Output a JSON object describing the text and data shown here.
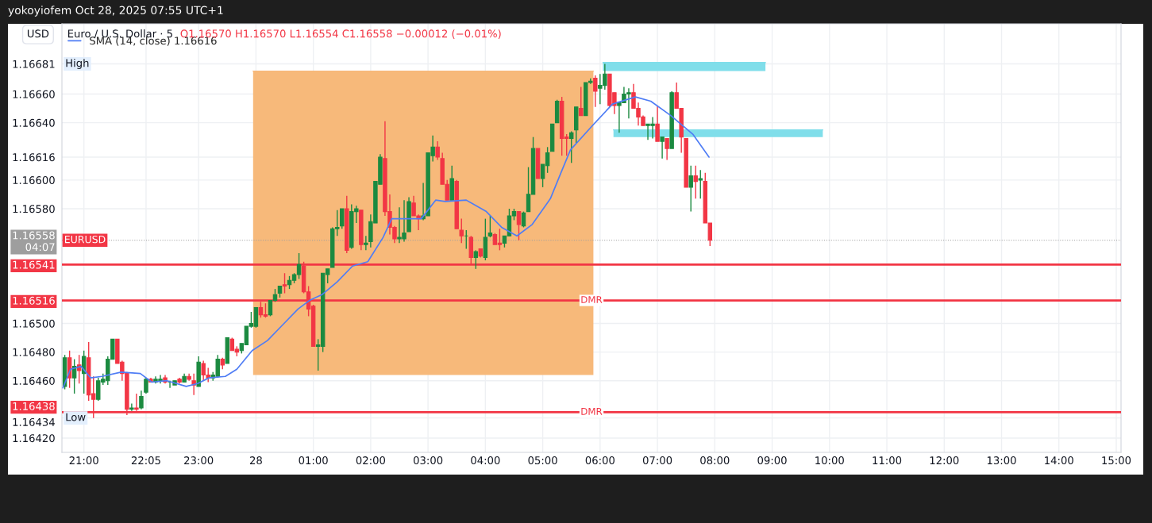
{
  "chart_data": {
    "type": "candlestick",
    "title": "Euro / U.S. Dollar · 5",
    "subtitle": "O1.16570 H1.16570 L1.16554 C1.16558 −0.00012 (−0.01%)",
    "ylabel": "USD",
    "xlim": [
      "2025-10-27T20:37",
      "2025-10-28T15:05"
    ],
    "ylim": [
      1.1641,
      1.16709
    ],
    "xticks": [
      {
        "value": "2025-10-27T21:00",
        "label": "21:00"
      },
      {
        "value": "2025-10-27T22:05",
        "label": "22:05"
      },
      {
        "value": "2025-10-27T23:00",
        "label": "23:00"
      },
      {
        "value": "2025-10-28",
        "label": "28"
      },
      {
        "value": "2025-10-28T01:00",
        "label": "01:00"
      },
      {
        "value": "2025-10-28T02:00",
        "label": "02:00"
      },
      {
        "value": "2025-10-28T03:00",
        "label": "03:00"
      },
      {
        "value": "2025-10-28T04:00",
        "label": "04:00"
      },
      {
        "value": "2025-10-28T05:00",
        "label": "05:00"
      },
      {
        "value": "2025-10-28T06:00",
        "label": "06:00"
      },
      {
        "value": "2025-10-28T07:00",
        "label": "07:00"
      },
      {
        "value": "2025-10-28T08:00",
        "label": "08:00"
      },
      {
        "value": "2025-10-28T09:00",
        "label": "09:00"
      },
      {
        "value": "2025-10-28T10:00",
        "label": "10:00"
      },
      {
        "value": "2025-10-28T11:00",
        "label": "11:00"
      },
      {
        "value": "2025-10-28T12:00",
        "label": "12:00"
      },
      {
        "value": "2025-10-28T13:00",
        "label": "13:00"
      },
      {
        "value": "2025-10-28T14:00",
        "label": "14:00"
      },
      {
        "value": "2025-10-28T15:00",
        "label": "15:00"
      }
    ],
    "yticks": [
      {
        "value": 1.1642,
        "label": "1.16420"
      },
      {
        "value": 1.16434,
        "label": "1.16434"
      },
      {
        "value": 1.16438,
        "label": "1.16438"
      },
      {
        "value": 1.1646,
        "label": "1.16460"
      },
      {
        "value": 1.1648,
        "label": "1.16480"
      },
      {
        "value": 1.165,
        "label": "1.16500"
      },
      {
        "value": 1.16516,
        "label": "1.16516"
      },
      {
        "value": 1.16541,
        "label": "1.16541"
      },
      {
        "value": 1.16558,
        "label": "1.16558\n04:07"
      },
      {
        "value": 1.1658,
        "label": "1.16580"
      },
      {
        "value": 1.166,
        "label": "1.16600"
      },
      {
        "value": 1.16616,
        "label": "1.16616"
      },
      {
        "value": 1.1664,
        "label": "1.16640"
      },
      {
        "value": 1.1666,
        "label": "1.16660"
      },
      {
        "value": 1.16681,
        "label": "1.16681"
      }
    ],
    "grid": true,
    "legend": "top left",
    "ref_lines": [
      {
        "axis": "y",
        "value": 1.16541,
        "label": null,
        "color": "#f23645",
        "line_style": "solid"
      },
      {
        "axis": "y",
        "value": 1.16516,
        "label": "DMR",
        "color": "#f23645",
        "line_style": "solid"
      },
      {
        "axis": "y",
        "value": 1.16438,
        "label": "DMR",
        "color": "#f23645",
        "line_style": "solid"
      },
      {
        "axis": "y",
        "value": 1.16558,
        "label": "EURUSD",
        "color": "#9e9e9e",
        "line_style": "dotted"
      }
    ],
    "annotations": [
      "yokoyiofem Oct 28, 2025 07:55 UTC+1",
      {
        "text": "High",
        "y": 1.16681
      },
      {
        "text": "Low",
        "y": 1.16434
      }
    ],
    "series": [
      {
        "type": "line",
        "color": "#f7b97a",
        "x": [
          "2025-10-27T23:57",
          "2025-10-28T05:53"
        ],
        "values": [
          1.16676,
          1.16676
        ],
        "lower": [
          1.16464,
          1.16464
        ],
        "upper": [
          1.16676,
          1.16676
        ]
      },
      {
        "type": "line",
        "color": "#80deea",
        "x": [
          "2025-10-28T06:03",
          "2025-10-28T08:53"
        ],
        "values": [
          1.16682,
          1.16682
        ],
        "lower": [
          1.16676,
          1.16676
        ],
        "upper": [
          1.16682,
          1.16682
        ]
      },
      {
        "type": "line",
        "color": "#80deea",
        "x": [
          "2025-10-28T06:14",
          "2025-10-28T09:53"
        ],
        "values": [
          1.16635,
          1.16635
        ],
        "lower": [
          1.1663,
          1.1663
        ],
        "upper": [
          1.16635,
          1.16635
        ]
      },
      {
        "type": "line",
        "name": "SMA (14, close) 1.16616",
        "color": "#4f7df5",
        "x": [
          "2025-10-27T20:38",
          "2025-10-27T20:46",
          "2025-10-27T20:57",
          "2025-10-27T21:07",
          "2025-10-27T21:19",
          "2025-10-27T21:39",
          "2025-10-27T21:59",
          "2025-10-27T22:11",
          "2025-10-27T22:27",
          "2025-10-27T22:47",
          "2025-10-27T22:59",
          "2025-10-27T23:11",
          "2025-10-27T23:28",
          "2025-10-27T23:40",
          "2025-10-27T23:56",
          "2025-10-28T00:12",
          "2025-10-28T00:28",
          "2025-10-28T00:44",
          "2025-10-28T00:56",
          "2025-10-28T01:09",
          "2025-10-28T01:25",
          "2025-10-28T01:41",
          "2025-10-28T01:57",
          "2025-10-28T02:13",
          "2025-10-28T02:22",
          "2025-10-28T02:53",
          "2025-10-28T03:08",
          "2025-10-28T03:18",
          "2025-10-28T03:40",
          "2025-10-28T04:01",
          "2025-10-28T04:17",
          "2025-10-28T04:33",
          "2025-10-28T04:49",
          "2025-10-28T05:08",
          "2025-10-28T05:19",
          "2025-10-28T05:29",
          "2025-10-28T05:52",
          "2025-10-28T06:13",
          "2025-10-28T06:37",
          "2025-10-28T06:53",
          "2025-10-28T07:14",
          "2025-10-28T07:37",
          "2025-10-28T07:54"
        ],
        "values": [
          1.16455,
          1.16468,
          1.1647,
          1.16462,
          1.16463,
          1.16466,
          1.16465,
          1.16459,
          1.1646,
          1.16456,
          1.16458,
          1.16462,
          1.16463,
          1.16468,
          1.16481,
          1.16488,
          1.16499,
          1.1651,
          1.16516,
          1.1652,
          1.16529,
          1.1654,
          1.16543,
          1.1656,
          1.16573,
          1.16573,
          1.16586,
          1.16585,
          1.16586,
          1.16578,
          1.16567,
          1.16561,
          1.16569,
          1.16587,
          1.16605,
          1.16621,
          1.16638,
          1.16653,
          1.16658,
          1.16655,
          1.16645,
          1.16632,
          1.16616
        ]
      },
      {
        "type": "candlestick",
        "color": "#1b8a40",
        "x": [
          "2025-10-27T20:40",
          "2025-10-27T20:50",
          "2025-10-27T21:00",
          "2025-10-27T21:15",
          "2025-10-27T21:20",
          "2025-10-27T21:25",
          "2025-10-27T21:30",
          "2025-10-27T21:50",
          "2025-10-27T22:00",
          "2025-10-27T22:05",
          "2025-10-27T22:15",
          "2025-10-27T22:20",
          "2025-10-27T22:30",
          "2025-10-27T22:35",
          "2025-10-27T22:45",
          "2025-10-27T23:00",
          "2025-10-27T23:15",
          "2025-10-27T23:20",
          "2025-10-27T23:30",
          "2025-10-27T23:45",
          "2025-10-27T23:50",
          "2025-10-27T23:55",
          "2025-10-28T00:00",
          "2025-10-28T00:15",
          "2025-10-28T00:20",
          "2025-10-28T00:25",
          "2025-10-28T00:35",
          "2025-10-28T00:40",
          "2025-10-28T00:45",
          "2025-10-28T01:05",
          "2025-10-28T01:10",
          "2025-10-28T01:15",
          "2025-10-28T01:20",
          "2025-10-28T01:25",
          "2025-10-28T01:30",
          "2025-10-28T01:40",
          "2025-10-28T01:45",
          "2025-10-28T01:55",
          "2025-10-28T02:00",
          "2025-10-28T02:05",
          "2025-10-28T02:10",
          "2025-10-28T02:30",
          "2025-10-28T02:35",
          "2025-10-28T02:40",
          "2025-10-28T02:55",
          "2025-10-28T03:00",
          "2025-10-28T03:05",
          "2025-10-28T03:25",
          "2025-10-28T03:40",
          "2025-10-28T03:50",
          "2025-10-28T04:00",
          "2025-10-28T04:05",
          "2025-10-28T04:20",
          "2025-10-28T04:25",
          "2025-10-28T04:30",
          "2025-10-28T04:40",
          "2025-10-28T04:45",
          "2025-10-28T04:50",
          "2025-10-28T05:00",
          "2025-10-28T05:05",
          "2025-10-28T05:10",
          "2025-10-28T05:15",
          "2025-10-28T05:30",
          "2025-10-28T05:35",
          "2025-10-28T05:45",
          "2025-10-28T05:50",
          "2025-10-28T06:00",
          "2025-10-28T06:05",
          "2025-10-28T06:20",
          "2025-10-28T06:25",
          "2025-10-28T06:30",
          "2025-10-28T06:50",
          "2025-10-28T06:55",
          "2025-10-28T07:05",
          "2025-10-28T07:15",
          "2025-10-28T07:35",
          "2025-10-28T07:45"
        ],
        "ohlc": [
          [
            1.16456,
            1.16478,
            1.16454,
            1.16476
          ],
          [
            1.16462,
            1.16475,
            1.16451,
            1.1647
          ],
          [
            1.16465,
            1.16481,
            1.16451,
            1.16477
          ],
          [
            1.16447,
            1.16462,
            1.16446,
            1.1646
          ],
          [
            1.16459,
            1.16465,
            1.16457,
            1.16461
          ],
          [
            1.1646,
            1.16477,
            1.16457,
            1.16475
          ],
          [
            1.16475,
            1.16489,
            1.16475,
            1.16489
          ],
          [
            1.1644,
            1.16444,
            1.16439,
            1.16441
          ],
          [
            1.16441,
            1.16453,
            1.1644,
            1.16449
          ],
          [
            1.16452,
            1.16462,
            1.16451,
            1.16461
          ],
          [
            1.16459,
            1.16463,
            1.16458,
            1.16461
          ],
          [
            1.1646,
            1.16464,
            1.16458,
            1.16461
          ],
          [
            1.16459,
            1.1646,
            1.16455,
            1.16459
          ],
          [
            1.16457,
            1.1646,
            1.16457,
            1.1646
          ],
          [
            1.16459,
            1.16465,
            1.16459,
            1.16463
          ],
          [
            1.16456,
            1.16477,
            1.16456,
            1.16473
          ],
          [
            1.16462,
            1.16466,
            1.1646,
            1.16464
          ],
          [
            1.16463,
            1.16478,
            1.16462,
            1.16475
          ],
          [
            1.16472,
            1.1649,
            1.16472,
            1.1649
          ],
          [
            1.16481,
            1.16486,
            1.16479,
            1.16486
          ],
          [
            1.16485,
            1.16498,
            1.16485,
            1.16498
          ],
          [
            1.16498,
            1.16508,
            1.16497,
            1.165
          ],
          [
            1.16498,
            1.16511,
            1.16497,
            1.16511
          ],
          [
            1.16506,
            1.16516,
            1.16505,
            1.16516
          ],
          [
            1.16516,
            1.16524,
            1.16515,
            1.1652
          ],
          [
            1.16521,
            1.16526,
            1.16518,
            1.16526
          ],
          [
            1.16527,
            1.16533,
            1.16524,
            1.1653
          ],
          [
            1.1653,
            1.16535,
            1.16528,
            1.16534
          ],
          [
            1.16534,
            1.16549,
            1.16531,
            1.16541
          ],
          [
            1.16484,
            1.16489,
            1.16467,
            1.16485
          ],
          [
            1.16484,
            1.16535,
            1.1648,
            1.16535
          ],
          [
            1.16534,
            1.16538,
            1.16528,
            1.16538
          ],
          [
            1.16539,
            1.16567,
            1.16539,
            1.16566
          ],
          [
            1.16566,
            1.16579,
            1.16561,
            1.16567
          ],
          [
            1.16568,
            1.1658,
            1.16566,
            1.1658
          ],
          [
            1.16553,
            1.16583,
            1.16552,
            1.16578
          ],
          [
            1.16578,
            1.16582,
            1.1657,
            1.1658
          ],
          [
            1.16555,
            1.16561,
            1.16551,
            1.16556
          ],
          [
            1.16557,
            1.16576,
            1.16553,
            1.16571
          ],
          [
            1.1657,
            1.16599,
            1.1657,
            1.16599
          ],
          [
            1.16597,
            1.16618,
            1.16597,
            1.16616
          ],
          [
            1.16559,
            1.16581,
            1.16556,
            1.1656
          ],
          [
            1.16559,
            1.16586,
            1.16557,
            1.16563
          ],
          [
            1.16564,
            1.16588,
            1.16564,
            1.16585
          ],
          [
            1.16573,
            1.16598,
            1.16572,
            1.16575
          ],
          [
            1.16575,
            1.16619,
            1.16575,
            1.16619
          ],
          [
            1.16617,
            1.16631,
            1.16613,
            1.16623
          ],
          [
            1.16586,
            1.1661,
            1.16586,
            1.16601
          ],
          [
            1.16561,
            1.16565,
            1.16552,
            1.16561
          ],
          [
            1.16546,
            1.16551,
            1.16538,
            1.1655
          ],
          [
            1.16546,
            1.16573,
            1.16544,
            1.1656
          ],
          [
            1.16561,
            1.16575,
            1.1656,
            1.16563
          ],
          [
            1.16556,
            1.16561,
            1.16553,
            1.16561
          ],
          [
            1.16561,
            1.1658,
            1.16561,
            1.16575
          ],
          [
            1.16575,
            1.1658,
            1.16572,
            1.16578
          ],
          [
            1.16568,
            1.16578,
            1.16567,
            1.16577
          ],
          [
            1.16578,
            1.16609,
            1.16578,
            1.1659
          ],
          [
            1.1659,
            1.1663,
            1.1659,
            1.16622
          ],
          [
            1.16601,
            1.16611,
            1.16595,
            1.16611
          ],
          [
            1.1661,
            1.16623,
            1.16605,
            1.16619
          ],
          [
            1.1662,
            1.16639,
            1.1662,
            1.16639
          ],
          [
            1.1664,
            1.16656,
            1.1664,
            1.16655
          ],
          [
            1.16629,
            1.16634,
            1.16612,
            1.16633
          ],
          [
            1.16635,
            1.16651,
            1.16626,
            1.16651
          ],
          [
            1.16645,
            1.16668,
            1.16645,
            1.16668
          ],
          [
            1.16668,
            1.16671,
            1.16667,
            1.16669
          ],
          [
            1.16664,
            1.16674,
            1.16653,
            1.16666
          ],
          [
            1.16666,
            1.16681,
            1.16663,
            1.16674
          ],
          [
            1.16652,
            1.16654,
            1.16633,
            1.16654
          ],
          [
            1.16654,
            1.16665,
            1.16654,
            1.1666
          ],
          [
            1.1666,
            1.16664,
            1.16643,
            1.16661
          ],
          [
            1.16638,
            1.16639,
            1.16628,
            1.16639
          ],
          [
            1.16638,
            1.16644,
            1.16629,
            1.16639
          ],
          [
            1.16627,
            1.1663,
            1.16615,
            1.1663
          ],
          [
            1.16622,
            1.16662,
            1.16622,
            1.16661
          ],
          [
            1.16595,
            1.1661,
            1.16578,
            1.16603
          ],
          [
            1.166,
            1.16607,
            1.16587,
            1.16601
          ]
        ]
      },
      {
        "type": "candlestick",
        "color": "#f23645",
        "x": [
          "2025-10-27T20:45",
          "2025-10-27T20:55",
          "2025-10-27T21:05",
          "2025-10-27T21:10",
          "2025-10-27T21:35",
          "2025-10-27T21:40",
          "2025-10-27T21:45",
          "2025-10-27T21:55",
          "2025-10-27T22:10",
          "2025-10-27T22:25",
          "2025-10-27T22:40",
          "2025-10-27T22:50",
          "2025-10-27T22:55",
          "2025-10-27T23:05",
          "2025-10-27T23:10",
          "2025-10-27T23:25",
          "2025-10-27T23:35",
          "2025-10-27T23:40",
          "2025-10-28T00:05",
          "2025-10-28T00:10",
          "2025-10-28T00:30",
          "2025-10-28T00:50",
          "2025-10-28T00:55",
          "2025-10-28T01:00",
          "2025-10-28T01:35",
          "2025-10-28T01:50",
          "2025-10-28T02:15",
          "2025-10-28T02:20",
          "2025-10-28T02:25",
          "2025-10-28T02:45",
          "2025-10-28T02:50",
          "2025-10-28T03:10",
          "2025-10-28T03:15",
          "2025-10-28T03:20",
          "2025-10-28T03:30",
          "2025-10-28T03:35",
          "2025-10-28T03:45",
          "2025-10-28T03:55",
          "2025-10-28T04:10",
          "2025-10-28T04:15",
          "2025-10-28T04:35",
          "2025-10-28T04:55",
          "2025-10-28T05:20",
          "2025-10-28T05:25",
          "2025-10-28T05:40",
          "2025-10-28T05:55",
          "2025-10-28T06:10",
          "2025-10-28T06:15",
          "2025-10-28T06:35",
          "2025-10-28T06:40",
          "2025-10-28T06:45",
          "2025-10-28T07:00",
          "2025-10-28T07:10",
          "2025-10-28T07:20",
          "2025-10-28T07:25",
          "2025-10-28T07:30",
          "2025-10-28T07:40",
          "2025-10-28T07:50",
          "2025-10-28T07:55"
        ],
        "ohlc": [
          [
            1.16476,
            1.16481,
            1.16455,
            1.16462
          ],
          [
            1.16471,
            1.16478,
            1.16458,
            1.16467
          ],
          [
            1.16476,
            1.16487,
            1.16446,
            1.1645
          ],
          [
            1.16451,
            1.16463,
            1.16434,
            1.16447
          ],
          [
            1.16489,
            1.16489,
            1.16472,
            1.16472
          ],
          [
            1.16473,
            1.16474,
            1.1646,
            1.16465
          ],
          [
            1.16465,
            1.16466,
            1.16436,
            1.1644
          ],
          [
            1.16441,
            1.16451,
            1.16439,
            1.1644
          ],
          [
            1.16461,
            1.16462,
            1.16459,
            1.16459
          ],
          [
            1.16462,
            1.16464,
            1.16458,
            1.16459
          ],
          [
            1.16461,
            1.16462,
            1.16458,
            1.16459
          ],
          [
            1.16463,
            1.16465,
            1.1646,
            1.16461
          ],
          [
            1.1646,
            1.16465,
            1.1645,
            1.16457
          ],
          [
            1.16472,
            1.16474,
            1.1646,
            1.16464
          ],
          [
            1.16464,
            1.16469,
            1.16459,
            1.16462
          ],
          [
            1.16475,
            1.16476,
            1.16468,
            1.16471
          ],
          [
            1.16489,
            1.1649,
            1.16481,
            1.16481
          ],
          [
            1.16482,
            1.16484,
            1.16477,
            1.1648
          ],
          [
            1.16511,
            1.16515,
            1.16504,
            1.16506
          ],
          [
            1.16506,
            1.16514,
            1.16504,
            1.16505
          ],
          [
            1.16527,
            1.16535,
            1.16521,
            1.16526
          ],
          [
            1.1654,
            1.16543,
            1.16521,
            1.16522
          ],
          [
            1.16522,
            1.16526,
            1.16505,
            1.1651
          ],
          [
            1.16512,
            1.16513,
            1.16484,
            1.16484
          ],
          [
            1.1658,
            1.16589,
            1.16549,
            1.16551
          ],
          [
            1.16579,
            1.16579,
            1.16551,
            1.16555
          ],
          [
            1.16615,
            1.16641,
            1.16575,
            1.16578
          ],
          [
            1.16578,
            1.1659,
            1.16562,
            1.16567
          ],
          [
            1.16567,
            1.16568,
            1.16556,
            1.16559
          ],
          [
            1.16584,
            1.16589,
            1.16575,
            1.16575
          ],
          [
            1.16575,
            1.16576,
            1.16565,
            1.16573
          ],
          [
            1.16623,
            1.16627,
            1.16614,
            1.16616
          ],
          [
            1.16615,
            1.16619,
            1.16597,
            1.16597
          ],
          [
            1.16597,
            1.166,
            1.16586,
            1.16586
          ],
          [
            1.16599,
            1.166,
            1.16566,
            1.16566
          ],
          [
            1.16565,
            1.16573,
            1.16556,
            1.16561
          ],
          [
            1.1656,
            1.16561,
            1.16541,
            1.16546
          ],
          [
            1.16552,
            1.16552,
            1.16546,
            1.16547
          ],
          [
            1.16562,
            1.16563,
            1.16555,
            1.16555
          ],
          [
            1.16556,
            1.16566,
            1.16551,
            1.16555
          ],
          [
            1.16578,
            1.16578,
            1.16558,
            1.16569
          ],
          [
            1.16622,
            1.16622,
            1.16601,
            1.16601
          ],
          [
            1.16655,
            1.16658,
            1.16617,
            1.16629
          ],
          [
            1.1663,
            1.16632,
            1.16617,
            1.16629
          ],
          [
            1.1665,
            1.16665,
            1.16645,
            1.16645
          ],
          [
            1.16671,
            1.16673,
            1.16651,
            1.16662
          ],
          [
            1.16674,
            1.16674,
            1.16651,
            1.16652
          ],
          [
            1.16661,
            1.16661,
            1.16646,
            1.16652
          ],
          [
            1.16661,
            1.16667,
            1.1665,
            1.1665
          ],
          [
            1.1665,
            1.16654,
            1.16638,
            1.16644
          ],
          [
            1.16644,
            1.16645,
            1.16638,
            1.16638
          ],
          [
            1.16639,
            1.16652,
            1.16627,
            1.16627
          ],
          [
            1.16629,
            1.16629,
            1.16614,
            1.16622
          ],
          [
            1.16661,
            1.16668,
            1.1665,
            1.1665
          ],
          [
            1.1665,
            1.1665,
            1.16619,
            1.1663
          ],
          [
            1.16629,
            1.16629,
            1.16595,
            1.16595
          ],
          [
            1.16603,
            1.1661,
            1.16587,
            1.16599
          ],
          [
            1.16599,
            1.16605,
            1.1657,
            1.1657
          ],
          [
            1.1657,
            1.1657,
            1.16554,
            1.16558
          ]
        ]
      }
    ]
  }
}
